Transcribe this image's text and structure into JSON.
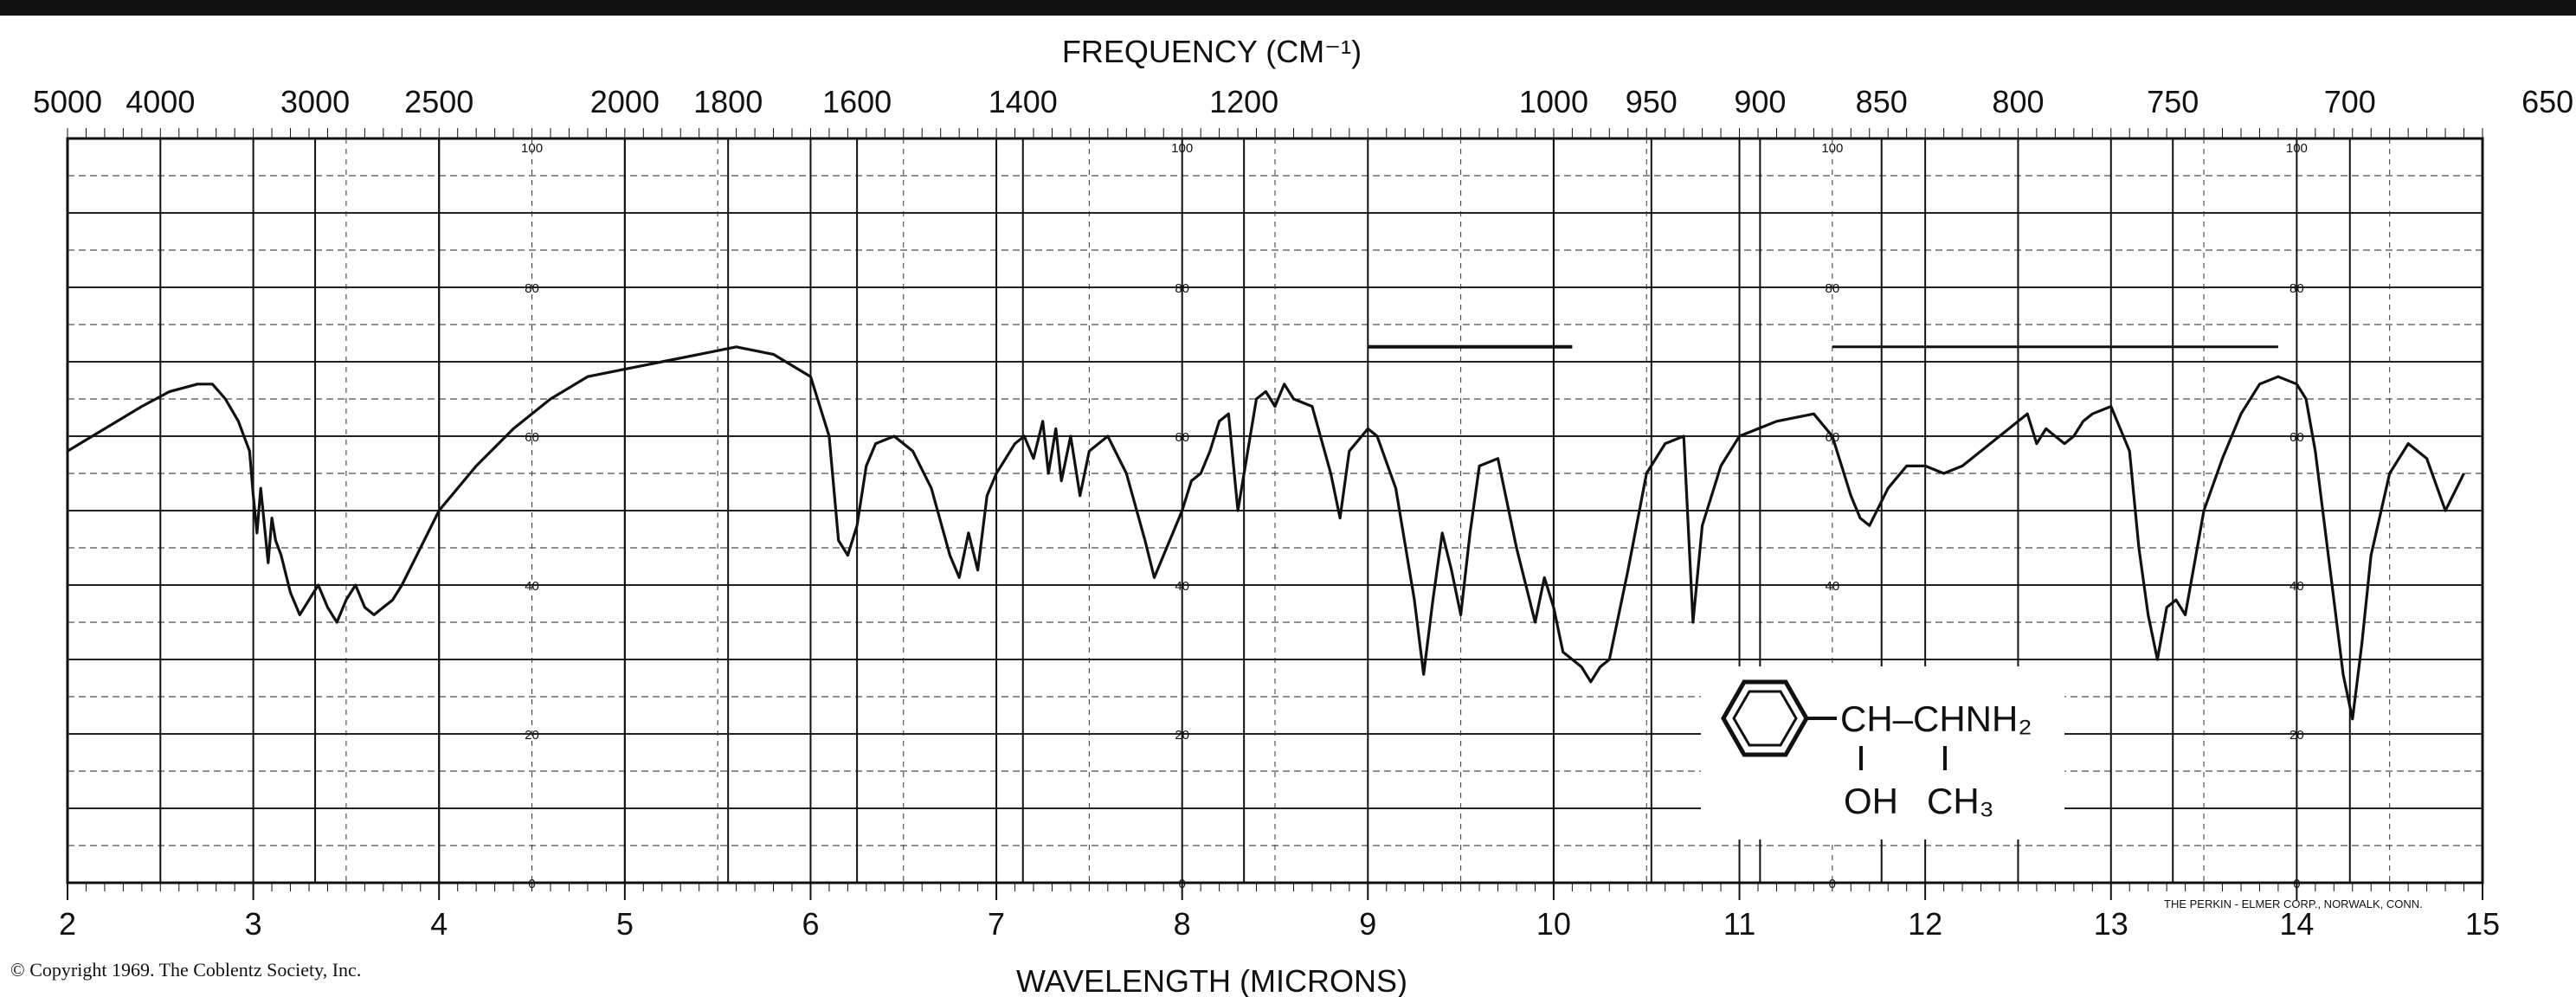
{
  "chart_data": {
    "type": "line",
    "title": "",
    "top_axis_label": "FREQUENCY (CM⁻¹)",
    "xlabel": "WAVELENGTH (MICRONS)",
    "ylabel": "",
    "xlim": [
      2,
      15
    ],
    "ylim": [
      0,
      100
    ],
    "x_ticks": [
      "2",
      "3",
      "4",
      "5",
      "6",
      "7",
      "8",
      "9",
      "10",
      "11",
      "12",
      "13",
      "14",
      "15"
    ],
    "frequency_ticks": [
      {
        "label": "5000",
        "micron": 2.0
      },
      {
        "label": "4000",
        "micron": 2.5
      },
      {
        "label": "3000",
        "micron": 3.333
      },
      {
        "label": "2500",
        "micron": 4.0
      },
      {
        "label": "2000",
        "micron": 5.0
      },
      {
        "label": "1800",
        "micron": 5.556
      },
      {
        "label": "1600",
        "micron": 6.25
      },
      {
        "label": "1400",
        "micron": 7.143
      },
      {
        "label": "1200",
        "micron": 8.333
      },
      {
        "label": "1000",
        "micron": 10.0
      },
      {
        "label": "950",
        "micron": 10.526
      },
      {
        "label": "900",
        "micron": 11.111
      },
      {
        "label": "850",
        "micron": 11.765
      },
      {
        "label": "800",
        "micron": 12.5
      },
      {
        "label": "750",
        "micron": 13.333
      },
      {
        "label": "700",
        "micron": 14.286
      },
      {
        "label": "650",
        "micron": 15.385
      }
    ],
    "transmittance_ticks": [
      "100",
      "80",
      "60",
      "40",
      "20",
      "0"
    ],
    "transmittance_label_columns": [
      4.5,
      8.0,
      11.5,
      14.0
    ],
    "grid": true,
    "series": [
      {
        "name": "",
        "x": [
          2.0,
          2.2,
          2.4,
          2.55,
          2.7,
          2.78,
          2.85,
          2.92,
          2.98,
          3.0,
          3.02,
          3.04,
          3.06,
          3.08,
          3.1,
          3.12,
          3.15,
          3.2,
          3.25,
          3.3,
          3.35,
          3.4,
          3.45,
          3.5,
          3.55,
          3.6,
          3.65,
          3.7,
          3.75,
          3.8,
          3.9,
          4.0,
          4.2,
          4.4,
          4.6,
          4.8,
          5.0,
          5.2,
          5.4,
          5.6,
          5.8,
          6.0,
          6.1,
          6.15,
          6.2,
          6.25,
          6.3,
          6.35,
          6.45,
          6.55,
          6.65,
          6.75,
          6.8,
          6.85,
          6.9,
          6.95,
          7.0,
          7.05,
          7.1,
          7.15,
          7.2,
          7.25,
          7.28,
          7.32,
          7.35,
          7.4,
          7.45,
          7.5,
          7.6,
          7.7,
          7.8,
          7.85,
          7.9,
          7.95,
          8.0,
          8.05,
          8.1,
          8.15,
          8.2,
          8.25,
          8.3,
          8.4,
          8.45,
          8.5,
          8.55,
          8.6,
          8.7,
          8.8,
          8.85,
          8.9,
          9.0,
          9.05,
          9.15,
          9.25,
          9.3,
          9.35,
          9.4,
          9.45,
          9.5,
          9.55,
          9.6,
          9.7,
          9.8,
          9.9,
          9.95,
          10.0,
          10.05,
          10.1,
          10.15,
          10.2,
          10.25,
          10.3,
          10.4,
          10.5,
          10.6,
          10.7,
          10.75,
          10.8,
          10.9,
          11.0,
          11.2,
          11.4,
          11.5,
          11.55,
          11.6,
          11.65,
          11.7,
          11.8,
          11.9,
          12.0,
          12.1,
          12.2,
          12.3,
          12.4,
          12.5,
          12.55,
          12.6,
          12.65,
          12.7,
          12.75,
          12.8,
          12.85,
          12.9,
          13.0,
          13.1,
          13.15,
          13.2,
          13.25,
          13.3,
          13.35,
          13.4,
          13.5,
          13.6,
          13.7,
          13.8,
          13.9,
          14.0,
          14.05,
          14.1,
          14.2,
          14.25,
          14.3,
          14.35,
          14.4,
          14.5,
          14.6,
          14.7,
          14.8,
          14.9
        ],
        "y": [
          58,
          61,
          64,
          66,
          67,
          67,
          65,
          62,
          58,
          52,
          47,
          53,
          48,
          43,
          49,
          46,
          44,
          39,
          36,
          38,
          40,
          37,
          35,
          38,
          40,
          37,
          36,
          37,
          38,
          40,
          45,
          50,
          56,
          61,
          65,
          68,
          69,
          70,
          71,
          72,
          71,
          68,
          60,
          46,
          44,
          48,
          56,
          59,
          60,
          58,
          53,
          44,
          41,
          47,
          42,
          52,
          55,
          57,
          59,
          60,
          57,
          62,
          55,
          61,
          54,
          60,
          52,
          58,
          60,
          55,
          46,
          41,
          44,
          47,
          50,
          54,
          55,
          58,
          62,
          63,
          50,
          65,
          66,
          64,
          67,
          65,
          64,
          55,
          49,
          58,
          61,
          60,
          53,
          38,
          28,
          38,
          47,
          42,
          36,
          47,
          56,
          57,
          45,
          35,
          41,
          37,
          31,
          30,
          29,
          27,
          29,
          30,
          42,
          55,
          59,
          60,
          35,
          48,
          56,
          60,
          62,
          63,
          60,
          56,
          52,
          49,
          48,
          53,
          56,
          56,
          55,
          56,
          58,
          60,
          62,
          63,
          59,
          61,
          60,
          59,
          60,
          62,
          63,
          64,
          58,
          45,
          36,
          30,
          37,
          38,
          36,
          50,
          57,
          63,
          67,
          68,
          67,
          65,
          58,
          38,
          28,
          22,
          32,
          44,
          55,
          59,
          57,
          50,
          55
        ]
      }
    ],
    "flat_baseline_note": {
      "from": 9.0,
      "to": 10.1,
      "y": 72
    }
  },
  "labels": {
    "frequency_title": "FREQUENCY (CM⁻¹)",
    "wavelength_title": "WAVELENGTH (MICRONS)",
    "copyright": "© Copyright 1969. The Coblentz Society, Inc.",
    "maker": "THE PERKIN - ELMER CORP., NORWALK, CONN."
  },
  "structure": {
    "main": "CH–CHNH₂",
    "sub_left": "OH",
    "sub_right": "CH₃"
  }
}
